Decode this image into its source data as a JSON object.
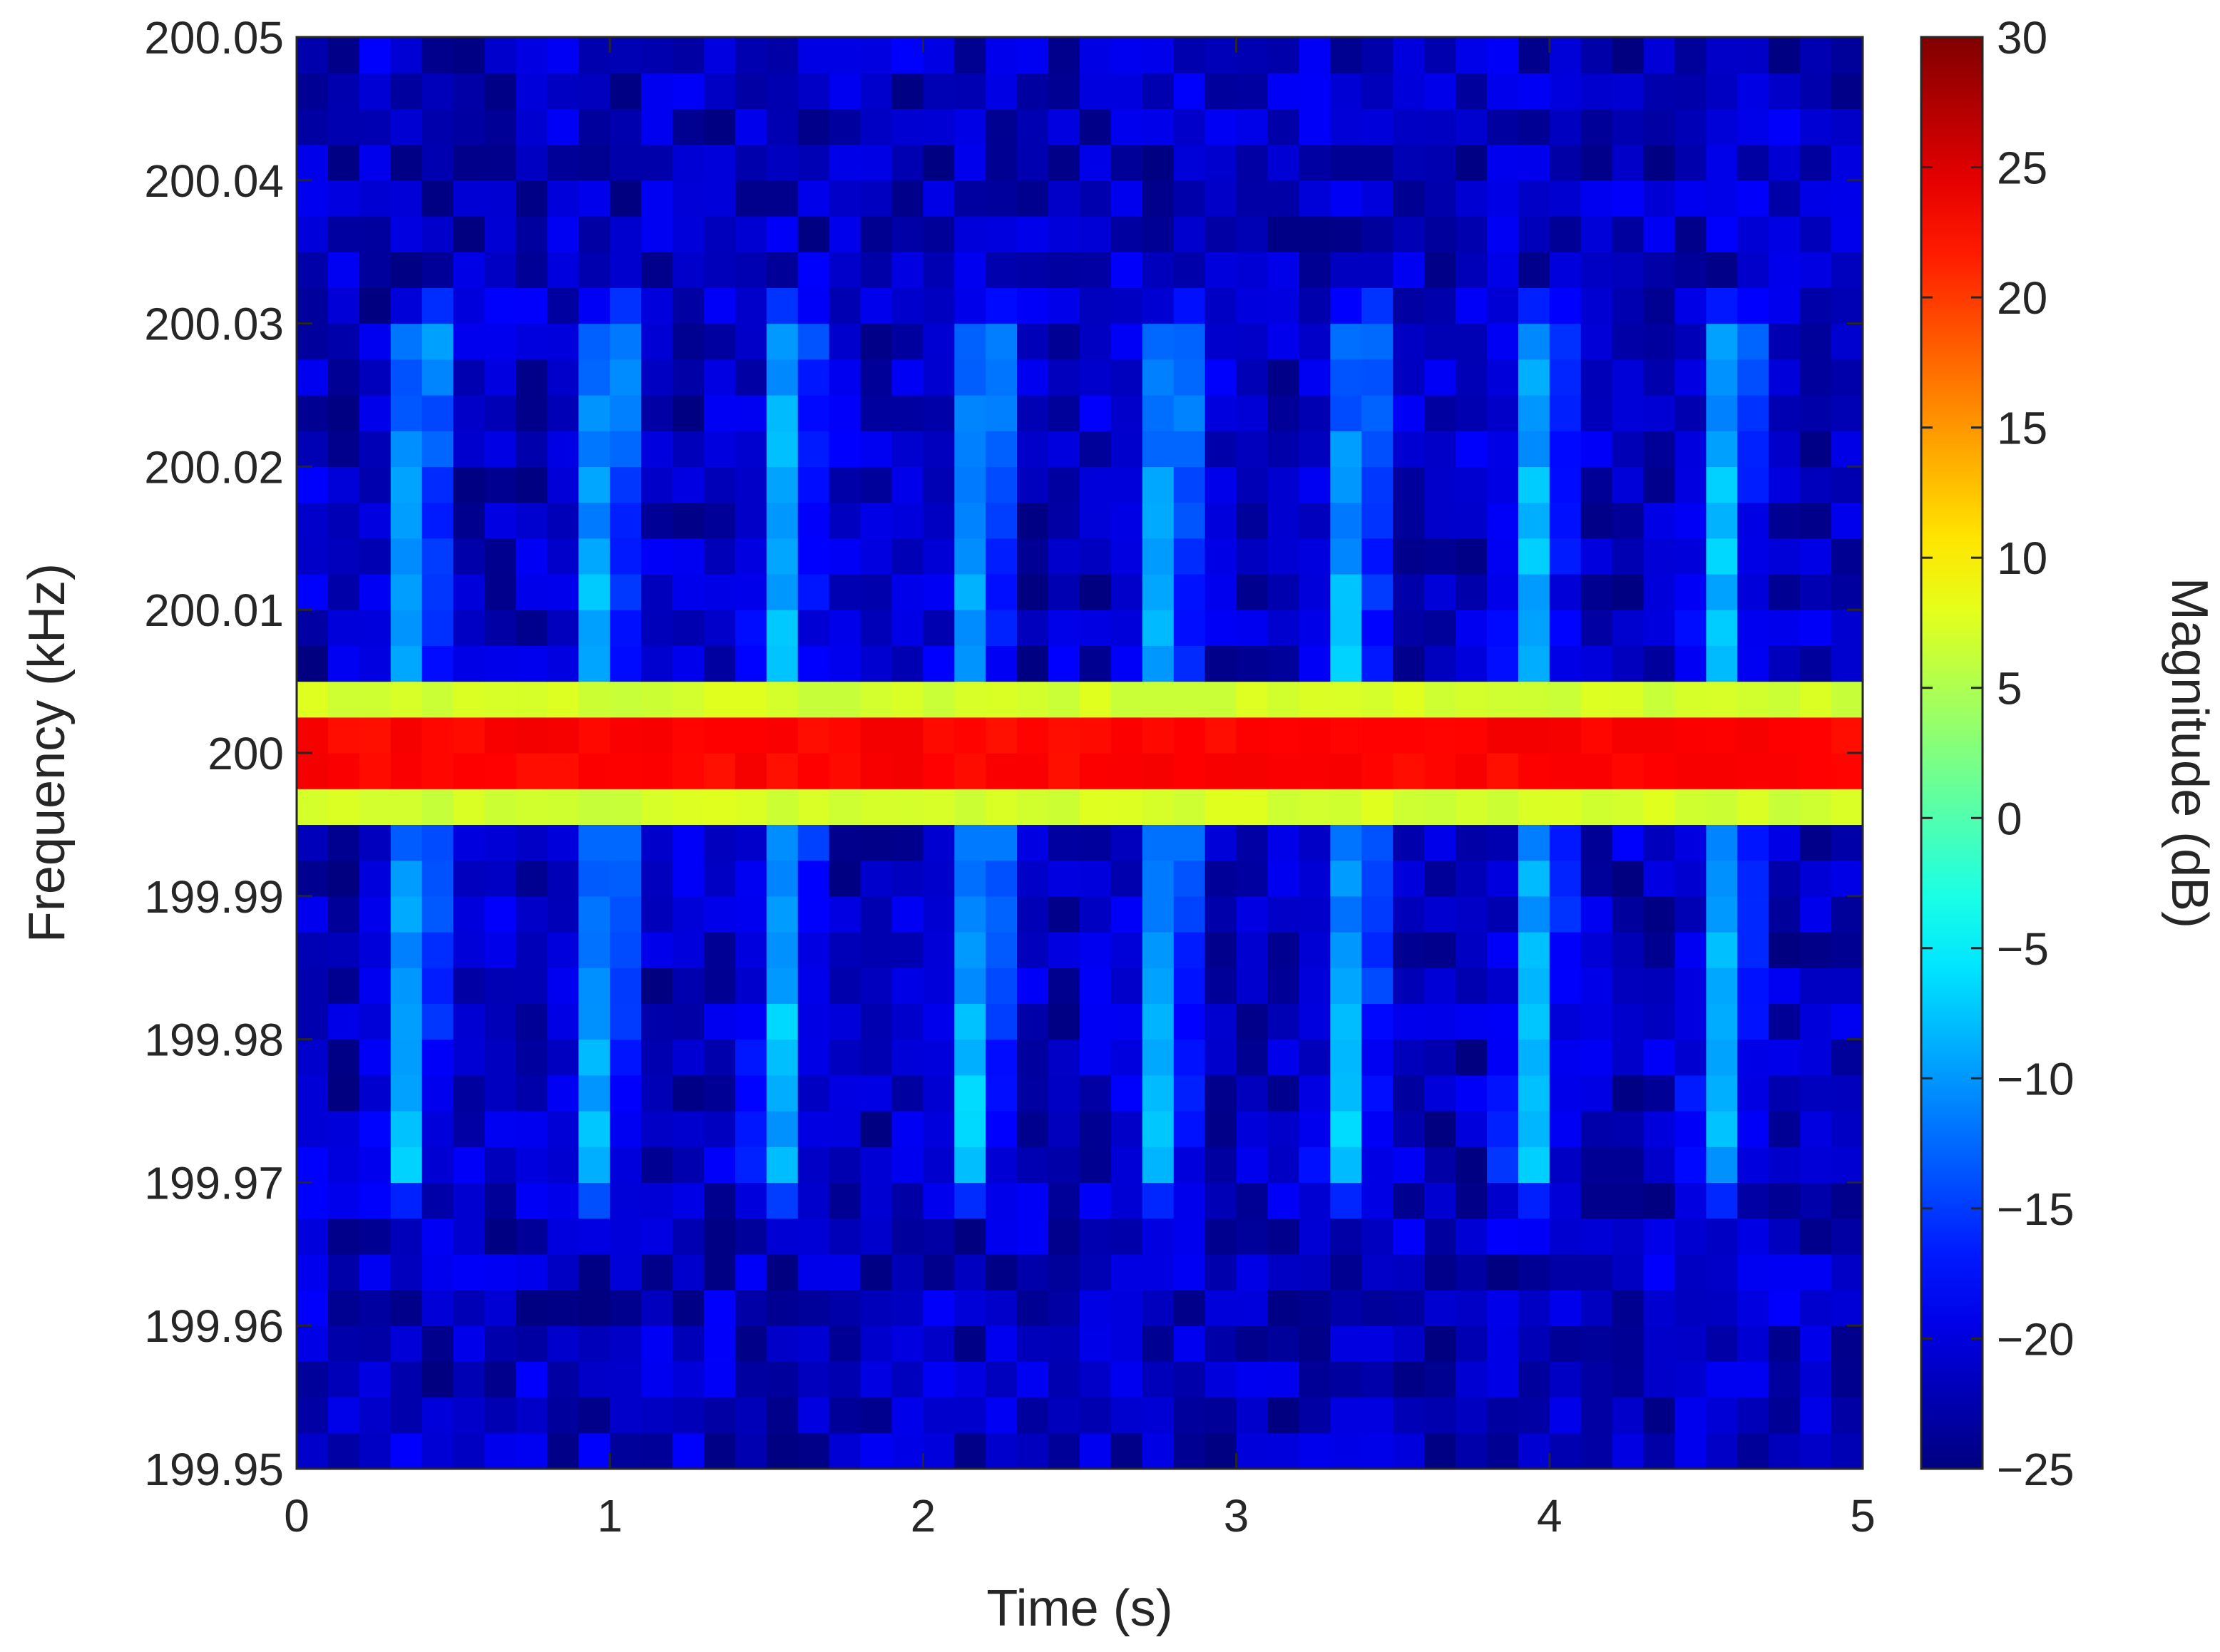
{
  "chart_data": {
    "type": "heatmap",
    "xlabel": "Time (s)",
    "ylabel": "Frequency (kHz)",
    "colorbar_label": "Magnitude (dB)",
    "colormap": "jet",
    "xlim": [
      0,
      5
    ],
    "ylim": [
      199.95,
      200.05
    ],
    "clim": [
      -25,
      30
    ],
    "x_ticks": [
      "0",
      "1",
      "2",
      "3",
      "4",
      "5"
    ],
    "y_ticks": [
      "199.95",
      "199.96",
      "199.97",
      "199.98",
      "199.99",
      "200",
      "200.01",
      "200.02",
      "200.03",
      "200.04",
      "200.05"
    ],
    "colorbar_ticks": [
      "−25",
      "−20",
      "−15",
      "−10",
      "−5",
      "0",
      "5",
      "10",
      "15",
      "20",
      "25",
      "30"
    ],
    "grid": false,
    "time_bins": 50,
    "freq_bins": 40,
    "carrier": {
      "frequency_khz": 200,
      "peak_db": 28,
      "sideband_db": [
        {
          "offset_khz": 0.00375,
          "db": 7
        },
        {
          "offset_khz": 0.00125,
          "db": 23
        },
        {
          "offset_khz": 0.0,
          "db": 28
        },
        {
          "offset_khz": -0.00125,
          "db": 23
        },
        {
          "offset_khz": -0.00375,
          "db": 7
        }
      ]
    },
    "sweep_times_s": [
      0.38,
      0.98,
      1.56,
      2.18,
      2.78,
      3.38,
      3.96,
      4.56
    ],
    "sweep_peak_db": -6,
    "sweep_extent_khz": [
      0.005,
      0.03
    ],
    "noise_floor_db": [
      -25,
      -17
    ]
  }
}
